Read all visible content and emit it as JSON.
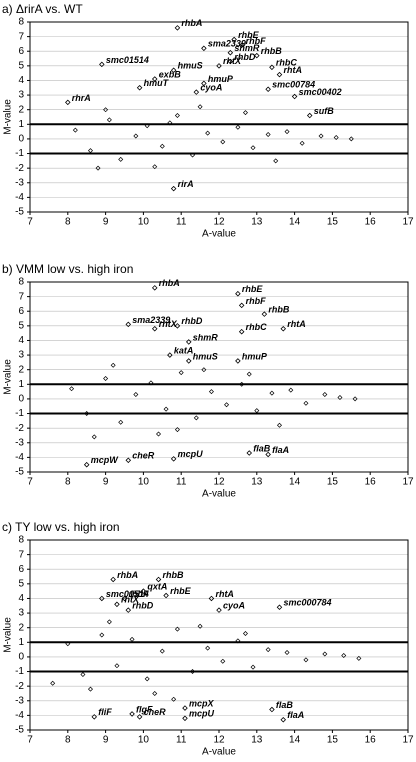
{
  "chart_data": [
    {
      "type": "scatter",
      "title": "a) ΔrirA vs. WT",
      "x_label": "A-value",
      "y_label": "M-value",
      "xlim": [
        7,
        17
      ],
      "ylim": [
        -5,
        8
      ],
      "xticks": [
        7,
        8,
        9,
        10,
        11,
        12,
        13,
        14,
        15,
        16,
        17
      ],
      "yticks": [
        -5,
        -4,
        -3,
        -2,
        -1,
        0,
        1,
        2,
        3,
        4,
        5,
        6,
        7,
        8
      ],
      "grid": true,
      "threshold_lines": [
        1,
        -1
      ],
      "color": "#000000",
      "background": {
        "x": [
          8.2,
          8.6,
          9.1,
          9.4,
          9.8,
          10.1,
          10.5,
          10.9,
          11.3,
          11.7,
          12.1,
          12.5,
          12.9,
          13.3,
          13.8,
          14.2,
          14.7,
          15.1,
          15.5,
          9.0,
          10.3,
          11.5,
          12.7,
          13.5,
          8.8,
          10.7
        ],
        "y": [
          0.6,
          -0.8,
          1.3,
          -1.4,
          0.2,
          0.9,
          -0.5,
          1.6,
          -1.1,
          0.4,
          -0.2,
          0.8,
          -0.6,
          0.3,
          0.5,
          -0.3,
          0.2,
          0.1,
          0.0,
          2.0,
          -1.9,
          2.2,
          1.8,
          -1.5,
          -2.0,
          1.1
        ]
      },
      "genes": [
        {
          "name": "rhbA",
          "x": 10.9,
          "y": 7.6
        },
        {
          "name": "rhbE",
          "x": 12.4,
          "y": 6.8
        },
        {
          "name": "sma2339",
          "x": 11.6,
          "y": 6.2
        },
        {
          "name": "shmR",
          "x": 12.3,
          "y": 5.9
        },
        {
          "name": "rhbF",
          "x": 12.6,
          "y": 6.4
        },
        {
          "name": "rhbB",
          "x": 13.0,
          "y": 5.7
        },
        {
          "name": "rhbD",
          "x": 12.3,
          "y": 5.3
        },
        {
          "name": "smc01514",
          "x": 8.9,
          "y": 5.1
        },
        {
          "name": "rhtX",
          "x": 12.0,
          "y": 5.0
        },
        {
          "name": "hmuS",
          "x": 10.8,
          "y": 4.7
        },
        {
          "name": "rhbC",
          "x": 13.4,
          "y": 4.9
        },
        {
          "name": "rhtA",
          "x": 13.6,
          "y": 4.4
        },
        {
          "name": "exbB",
          "x": 10.3,
          "y": 4.1
        },
        {
          "name": "hmuP",
          "x": 11.6,
          "y": 3.8
        },
        {
          "name": "hmuT",
          "x": 9.9,
          "y": 3.5
        },
        {
          "name": "cyoA",
          "x": 11.4,
          "y": 3.2
        },
        {
          "name": "smc00784",
          "x": 13.3,
          "y": 3.4
        },
        {
          "name": "smc00402",
          "x": 14.0,
          "y": 2.9
        },
        {
          "name": "sufB",
          "x": 14.4,
          "y": 1.6
        },
        {
          "name": "rhrA",
          "x": 8.0,
          "y": 2.5
        },
        {
          "name": "rirA",
          "x": 10.8,
          "y": -3.4
        }
      ]
    },
    {
      "type": "scatter",
      "title": "b) VMM low vs. high iron",
      "x_label": "A-value",
      "y_label": "M-value",
      "xlim": [
        7,
        17
      ],
      "ylim": [
        -5,
        8
      ],
      "xticks": [
        7,
        8,
        9,
        10,
        11,
        12,
        13,
        14,
        15,
        16,
        17
      ],
      "yticks": [
        -5,
        -4,
        -3,
        -2,
        -1,
        0,
        1,
        2,
        3,
        4,
        5,
        6,
        7,
        8
      ],
      "grid": true,
      "threshold_lines": [
        1,
        -1
      ],
      "color": "#000000",
      "background": {
        "x": [
          8.1,
          8.5,
          9.0,
          9.4,
          9.8,
          10.2,
          10.6,
          11.0,
          11.4,
          11.8,
          12.2,
          12.6,
          13.0,
          13.4,
          13.9,
          14.3,
          14.8,
          15.2,
          15.6,
          9.2,
          10.4,
          11.6,
          12.8,
          13.6,
          8.7,
          10.9
        ],
        "y": [
          0.7,
          -1.0,
          1.4,
          -1.6,
          0.3,
          1.1,
          -0.7,
          1.8,
          -1.3,
          0.5,
          -0.4,
          1.0,
          -0.8,
          0.4,
          0.6,
          -0.3,
          0.3,
          0.1,
          0.0,
          2.3,
          -2.4,
          2.0,
          1.7,
          -1.8,
          -2.6,
          -2.1
        ]
      },
      "genes": [
        {
          "name": "rhbA",
          "x": 10.3,
          "y": 7.6
        },
        {
          "name": "rhbE",
          "x": 12.5,
          "y": 7.2
        },
        {
          "name": "rhbF",
          "x": 12.6,
          "y": 6.4
        },
        {
          "name": "rhbB",
          "x": 13.2,
          "y": 5.8
        },
        {
          "name": "sma2339",
          "x": 9.6,
          "y": 5.1
        },
        {
          "name": "rhtX",
          "x": 10.3,
          "y": 4.8
        },
        {
          "name": "rhbD",
          "x": 10.9,
          "y": 5.0
        },
        {
          "name": "rhbC",
          "x": 12.6,
          "y": 4.6
        },
        {
          "name": "rhtA",
          "x": 13.7,
          "y": 4.8
        },
        {
          "name": "shmR",
          "x": 11.2,
          "y": 3.9
        },
        {
          "name": "katA",
          "x": 10.7,
          "y": 3.0
        },
        {
          "name": "hmuS",
          "x": 11.2,
          "y": 2.6
        },
        {
          "name": "hmuP",
          "x": 12.5,
          "y": 2.6
        },
        {
          "name": "flaB",
          "x": 12.8,
          "y": -3.7
        },
        {
          "name": "flaA",
          "x": 13.3,
          "y": -3.8
        },
        {
          "name": "mcpU",
          "x": 10.8,
          "y": -4.1
        },
        {
          "name": "cheR",
          "x": 9.6,
          "y": -4.2
        },
        {
          "name": "mcpW",
          "x": 8.5,
          "y": -4.5
        }
      ]
    },
    {
      "type": "scatter",
      "title": "c) TY low vs. high iron",
      "x_label": "A-value",
      "y_label": "M-value",
      "xlim": [
        7,
        17
      ],
      "ylim": [
        -5,
        8
      ],
      "xticks": [
        7,
        8,
        9,
        10,
        11,
        12,
        13,
        14,
        15,
        16,
        17
      ],
      "yticks": [
        -5,
        -4,
        -3,
        -2,
        -1,
        0,
        1,
        2,
        3,
        4,
        5,
        6,
        7,
        8
      ],
      "grid": true,
      "threshold_lines": [
        1,
        -1
      ],
      "color": "#000000",
      "background": {
        "x": [
          7.6,
          8.0,
          8.4,
          8.9,
          9.3,
          9.7,
          10.1,
          10.5,
          10.9,
          11.3,
          11.7,
          12.1,
          12.5,
          12.9,
          13.3,
          13.8,
          14.3,
          14.8,
          15.3,
          15.7,
          9.1,
          10.3,
          11.5,
          12.7,
          8.6,
          10.8
        ],
        "y": [
          -1.8,
          0.9,
          -1.2,
          1.5,
          -0.6,
          1.2,
          -1.5,
          0.4,
          1.9,
          -1.0,
          0.6,
          -0.3,
          1.1,
          -0.7,
          0.5,
          0.3,
          -0.2,
          0.2,
          0.1,
          -0.1,
          2.4,
          -2.5,
          2.1,
          1.6,
          -2.2,
          -2.9
        ]
      },
      "genes": [
        {
          "name": "rhbA",
          "x": 9.2,
          "y": 5.3
        },
        {
          "name": "rhbB",
          "x": 10.4,
          "y": 5.3
        },
        {
          "name": "qxtA",
          "x": 10.0,
          "y": 4.5
        },
        {
          "name": "rhbE",
          "x": 10.6,
          "y": 4.2
        },
        {
          "name": "rhbF",
          "x": 9.5,
          "y": 4.0
        },
        {
          "name": "smc01514",
          "x": 8.9,
          "y": 4.0
        },
        {
          "name": "rhtX",
          "x": 9.3,
          "y": 3.6
        },
        {
          "name": "rhbD",
          "x": 9.6,
          "y": 3.2
        },
        {
          "name": "rhtA",
          "x": 11.8,
          "y": 4.0
        },
        {
          "name": "cyoA",
          "x": 12.0,
          "y": 3.2
        },
        {
          "name": "smc000784",
          "x": 13.6,
          "y": 3.4
        },
        {
          "name": "mcpX",
          "x": 11.1,
          "y": -3.5
        },
        {
          "name": "mcpU",
          "x": 11.1,
          "y": -4.2
        },
        {
          "name": "cheR",
          "x": 9.9,
          "y": -4.1
        },
        {
          "name": "flgF",
          "x": 9.7,
          "y": -3.9
        },
        {
          "name": "fliF",
          "x": 8.7,
          "y": -4.1
        },
        {
          "name": "flaB",
          "x": 13.4,
          "y": -3.6
        },
        {
          "name": "flaA",
          "x": 13.7,
          "y": -4.3
        }
      ]
    }
  ]
}
